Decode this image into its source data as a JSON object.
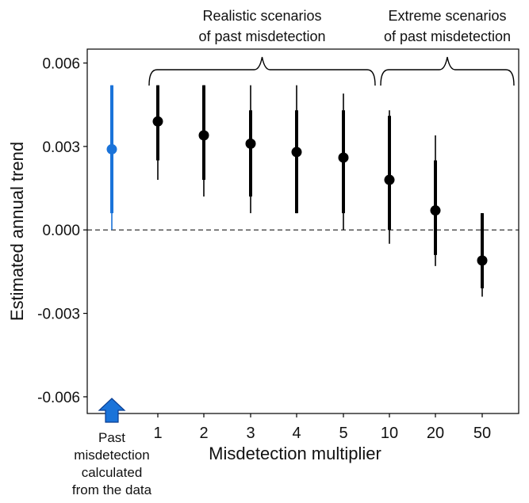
{
  "chart_data": {
    "type": "scatter",
    "xlabel": "Misdetection multiplier",
    "ylabel": "Estimated annual trend",
    "ylim": [
      -0.0066,
      0.0065
    ],
    "yticks": [
      "0.006",
      "0.003",
      "0.000",
      "-0.003",
      "-0.006"
    ],
    "ytick_values": [
      0.006,
      0.003,
      0.0,
      -0.003,
      -0.006
    ],
    "reference_line": {
      "y": 0.0,
      "style": "dashed"
    },
    "grid": false,
    "categories": [
      "",
      "1",
      "2",
      "3",
      "4",
      "5",
      "10",
      "20",
      "50"
    ],
    "points": [
      {
        "category": "",
        "estimate": 0.0029,
        "inner": [
          0.0006,
          0.0052
        ],
        "outer": [
          0.0,
          0.0052
        ],
        "color": "#1a73d9"
      },
      {
        "category": "1",
        "estimate": 0.0039,
        "inner": [
          0.0025,
          0.0052
        ],
        "outer": [
          0.0018,
          0.0052
        ],
        "color": "#000000"
      },
      {
        "category": "2",
        "estimate": 0.0034,
        "inner": [
          0.0018,
          0.0052
        ],
        "outer": [
          0.0012,
          0.0052
        ],
        "color": "#000000"
      },
      {
        "category": "3",
        "estimate": 0.0031,
        "inner": [
          0.0012,
          0.0043
        ],
        "outer": [
          0.0006,
          0.0052
        ],
        "color": "#000000"
      },
      {
        "category": "4",
        "estimate": 0.0028,
        "inner": [
          0.0006,
          0.0043
        ],
        "outer": [
          0.0006,
          0.0052
        ],
        "color": "#000000"
      },
      {
        "category": "5",
        "estimate": 0.0026,
        "inner": [
          0.0006,
          0.0043
        ],
        "outer": [
          0.0,
          0.0049
        ],
        "color": "#000000"
      },
      {
        "category": "10",
        "estimate": 0.0018,
        "inner": [
          0.0,
          0.0041
        ],
        "outer": [
          -0.0005,
          0.0043
        ],
        "color": "#000000"
      },
      {
        "category": "20",
        "estimate": 0.0007,
        "inner": [
          -0.0009,
          0.0025
        ],
        "outer": [
          -0.0013,
          0.0034
        ],
        "color": "#000000"
      },
      {
        "category": "50",
        "estimate": -0.0011,
        "inner": [
          -0.0021,
          0.0006
        ],
        "outer": [
          -0.0024,
          0.0006
        ],
        "color": "#000000"
      }
    ],
    "brace_groups": [
      {
        "from": "1",
        "to": "5",
        "label_lines": [
          "Realistic scenarios",
          "of past misdetection"
        ]
      },
      {
        "from": "10",
        "to": "50",
        "label_lines": [
          "Extreme scenarios",
          "of past misdetection"
        ]
      }
    ],
    "annotation": {
      "arrow_color": "#1a73d9",
      "lines": [
        "Past",
        "misdetection",
        "calculated",
        "from the data"
      ]
    }
  }
}
